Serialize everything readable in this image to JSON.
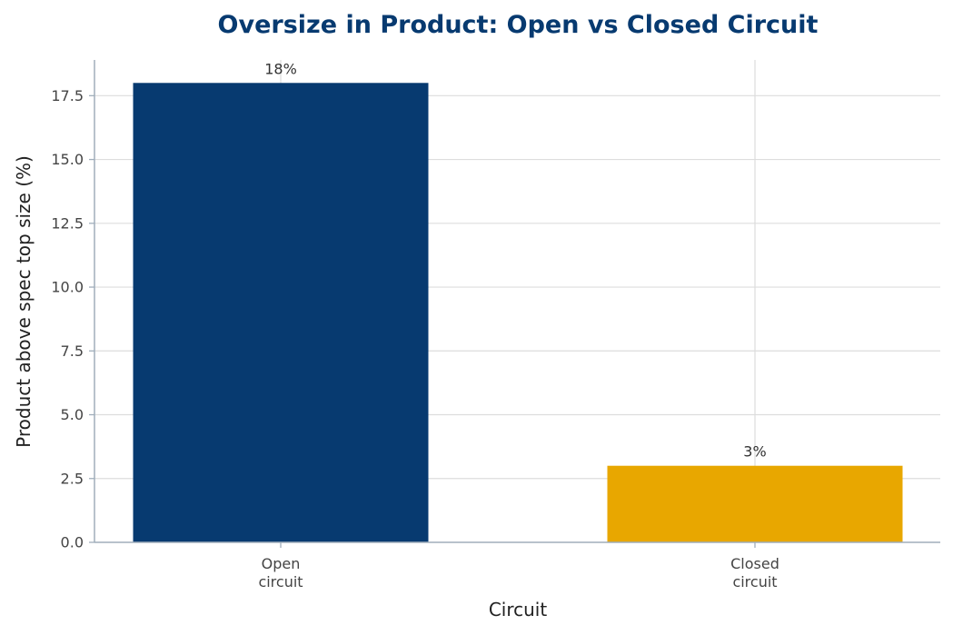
{
  "chart_data": {
    "type": "bar",
    "title": "Oversize in Product: Open vs Closed Circuit",
    "xlabel": "Circuit",
    "ylabel": "Product above spec top size (%)",
    "categories": [
      "Open\ncircuit",
      "Closed\ncircuit"
    ],
    "values": [
      18,
      3
    ],
    "data_labels": [
      "18%",
      "3%"
    ],
    "bar_colors": [
      "#073a70",
      "#e8a700"
    ],
    "ylim": [
      0,
      18.9
    ],
    "yticks": [
      0.0,
      2.5,
      5.0,
      7.5,
      10.0,
      12.5,
      15.0,
      17.5
    ],
    "ytick_labels": [
      "0.0",
      "2.5",
      "5.0",
      "7.5",
      "10.0",
      "12.5",
      "15.0",
      "17.5"
    ],
    "grid": true,
    "title_color": "#073a70"
  }
}
